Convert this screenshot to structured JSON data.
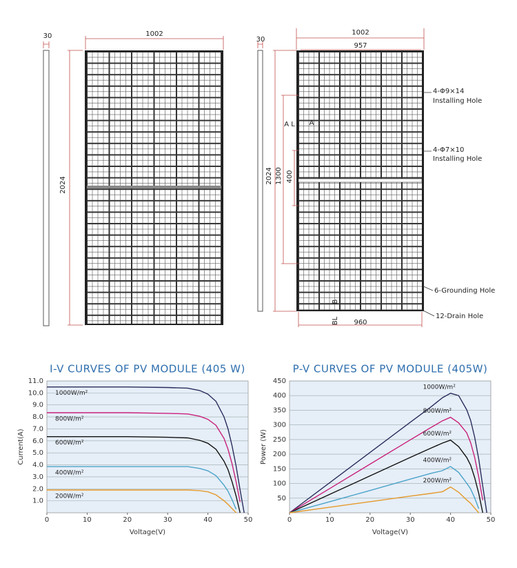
{
  "drawing": {
    "left_side_thickness": 30,
    "left_width": 1002,
    "left_height": 2024,
    "right_side_thickness": 30,
    "right_width": 1002,
    "right_inner_width": 957,
    "right_height": 2024,
    "hole_spacing": 1300,
    "hole_offset": 400,
    "mark_al": "A L",
    "mark_a": "A",
    "mark_bl": "BL",
    "mark_b": "B",
    "bottom_width": 960,
    "callouts": [
      "4-Φ9×14",
      "Installing Hole",
      "4-Φ7×10",
      "Installing Hole",
      "6-Grounding Hole",
      "12-Drain Hole"
    ]
  },
  "chart_data": [
    {
      "type": "line",
      "title": "I-V CURVES OF PV MODULE (405 W)",
      "x_label": "Voltage(V)",
      "y_label": "Current(A)",
      "x": [
        0,
        10,
        20,
        30,
        35,
        38,
        40,
        42,
        44,
        45,
        46,
        47,
        48,
        49
      ],
      "xlim": [
        0,
        50
      ],
      "xticks": [
        0,
        10,
        20,
        30,
        40,
        50
      ],
      "ylim": [
        0,
        11
      ],
      "yticks": [
        {
          "value": 1,
          "label": "1.0"
        },
        {
          "value": 2,
          "label": "2.0"
        },
        {
          "value": 3,
          "label": "3.0"
        },
        {
          "value": 4,
          "label": "4.0"
        },
        {
          "value": 5,
          "label": "5.0"
        },
        {
          "value": 6,
          "label": "6.0"
        },
        {
          "value": 7,
          "label": "7.0"
        },
        {
          "value": 8,
          "label": "8.0"
        },
        {
          "value": 9,
          "label": "9.0"
        },
        {
          "value": 10,
          "label": "10.0"
        },
        {
          "value": 11,
          "label": "11.0"
        }
      ],
      "grid": true,
      "series": [
        {
          "name": "1000W/m²",
          "color": "#2b2d5c",
          "values": [
            10.5,
            10.5,
            10.5,
            10.45,
            10.4,
            10.2,
            9.9,
            9.3,
            8.0,
            7.0,
            5.6,
            3.9,
            1.9,
            0
          ]
        },
        {
          "name": "800W/m²",
          "color": "#c8217a",
          "values": [
            8.35,
            8.35,
            8.35,
            8.3,
            8.25,
            8.05,
            7.8,
            7.3,
            6.2,
            5.3,
            4.1,
            2.6,
            0.9,
            null
          ]
        },
        {
          "name": "600W/m²",
          "color": "#111111",
          "values": [
            6.35,
            6.35,
            6.35,
            6.3,
            6.25,
            6.05,
            5.8,
            5.3,
            4.3,
            3.6,
            2.6,
            1.4,
            0,
            null
          ]
        },
        {
          "name": "400W/m²",
          "color": "#4aa3c8",
          "values": [
            3.85,
            3.85,
            3.85,
            3.85,
            3.85,
            3.7,
            3.5,
            3.1,
            2.3,
            1.8,
            1.1,
            0.3,
            null,
            null
          ]
        },
        {
          "name": "200W/m²",
          "color": "#e59a2b",
          "values": [
            1.9,
            1.9,
            1.9,
            1.9,
            1.9,
            1.85,
            1.75,
            1.5,
            1.0,
            0.7,
            0.35,
            0,
            null,
            null
          ]
        }
      ]
    },
    {
      "type": "line",
      "title": "P-V CURVES OF PV MODULE (405W)",
      "x_label": "Voltage(V)",
      "y_label": "Power (W)",
      "x": [
        0,
        10,
        20,
        30,
        35,
        38,
        40,
        42,
        44,
        45,
        46,
        47,
        48,
        49
      ],
      "xlim": [
        0,
        50
      ],
      "xticks": [
        0,
        10,
        20,
        30,
        40,
        50
      ],
      "ylim": [
        0,
        450
      ],
      "yticks": [
        50,
        100,
        150,
        200,
        250,
        300,
        350,
        400,
        450
      ],
      "grid": true,
      "series": [
        {
          "name": "1000W/m²",
          "color": "#2b2d5c",
          "values": [
            0,
            103,
            206,
            309,
            360,
            393,
            408,
            400,
            352,
            315,
            258,
            183,
            91,
            0
          ]
        },
        {
          "name": "800W/m²",
          "color": "#c8217a",
          "values": [
            0,
            83,
            166,
            249,
            290,
            314,
            326,
            307,
            273,
            239,
            189,
            122,
            43,
            null
          ]
        },
        {
          "name": "600W/m²",
          "color": "#111111",
          "values": [
            0,
            63,
            126,
            189,
            220,
            238,
            248,
            226,
            189,
            162,
            120,
            66,
            0,
            null
          ]
        },
        {
          "name": "400W/m²",
          "color": "#4aa3c8",
          "values": [
            0,
            38,
            76,
            115,
            134,
            144,
            158,
            138,
            101,
            81,
            51,
            14,
            null,
            null
          ]
        },
        {
          "name": "200W/m²",
          "color": "#e59a2b",
          "values": [
            0,
            19,
            38,
            57,
            66,
            72,
            88,
            70,
            44,
            32,
            16,
            0,
            null,
            null
          ]
        }
      ]
    }
  ]
}
